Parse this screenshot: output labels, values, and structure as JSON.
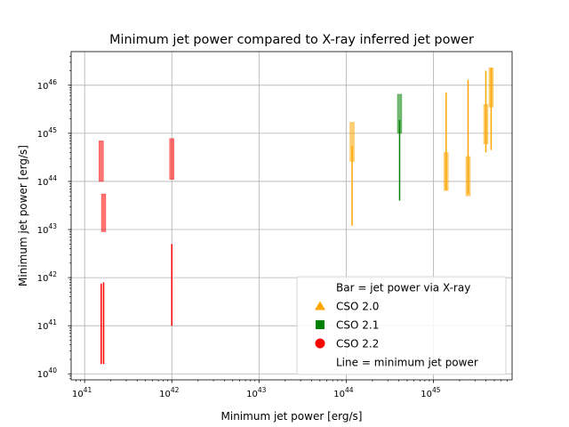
{
  "chart_data": {
    "type": "scatter",
    "title": "Minimum jet power compared to X-ray inferred jet power",
    "xlabel": "Minimum jet power [erg/s]",
    "ylabel": "Minimum jet power [erg/s]",
    "xscale": "log",
    "yscale": "log",
    "xlim": [
      7e+40,
      8e+45
    ],
    "ylim": [
      7.5e+39,
      5e+46
    ],
    "grid": true,
    "x_ticks": [
      {
        "value": 1e+41,
        "base": "10",
        "exp": "41"
      },
      {
        "value": 1e+42,
        "base": "10",
        "exp": "42"
      },
      {
        "value": 1e+43,
        "base": "10",
        "exp": "43"
      },
      {
        "value": 1e+44,
        "base": "10",
        "exp": "44"
      },
      {
        "value": 1e+45,
        "base": "10",
        "exp": "45"
      }
    ],
    "y_ticks": [
      {
        "value": 1e+40,
        "base": "10",
        "exp": "40"
      },
      {
        "value": 1e+41,
        "base": "10",
        "exp": "41"
      },
      {
        "value": 1e+42,
        "base": "10",
        "exp": "42"
      },
      {
        "value": 1e+43,
        "base": "10",
        "exp": "43"
      },
      {
        "value": 1e+44,
        "base": "10",
        "exp": "44"
      },
      {
        "value": 1e+45,
        "base": "10",
        "exp": "45"
      },
      {
        "value": 1e+46,
        "base": "10",
        "exp": "46"
      }
    ],
    "legend": {
      "placement": "lower right",
      "entries": [
        {
          "label": "Bar = jet power via X-ray",
          "marker": "none"
        },
        {
          "label": "CSO 2.0",
          "marker": "triangle",
          "color": "#ffa500"
        },
        {
          "label": "CSO 2.1",
          "marker": "square",
          "color": "#008000"
        },
        {
          "label": "CSO 2.2",
          "marker": "circle",
          "color": "#ff0000"
        },
        {
          "label": "Line = minimum jet power",
          "marker": "none"
        }
      ]
    },
    "series": [
      {
        "name": "CSO 2.0",
        "color": "#ffa500",
        "sources": [
          {
            "x": 1.17e+44,
            "line": [
              1.2e+43,
              5.5e+44
            ],
            "bar": [
              2.6e+44,
              1.7e+45
            ]
          },
          {
            "x": 1.4e+45,
            "line": [
              6.5e+43,
              7e+45
            ],
            "bar": [
              6.5e+43,
              4e+44
            ]
          },
          {
            "x": 2.5e+45,
            "line": [
              5.5e+43,
              1.3e+46
            ],
            "bar": [
              5e+43,
              3.3e+44
            ]
          },
          {
            "x": 4e+45,
            "line": [
              4e+44,
              2e+46
            ],
            "bar": [
              6e+44,
              4e+45
            ]
          },
          {
            "x": 4.6e+45,
            "line": [
              4.5e+44,
              2.3e+46
            ],
            "bar": [
              3.5e+45,
              2.3e+46
            ]
          }
        ]
      },
      {
        "name": "CSO 2.1",
        "color": "#008000",
        "sources": [
          {
            "x": 4.1e+44,
            "line": [
              4e+43,
              1.9e+45
            ],
            "bar": [
              1e+45,
              6.5e+45
            ]
          }
        ]
      },
      {
        "name": "CSO 2.2",
        "color": "#ff0000",
        "sources": [
          {
            "x": 1.55e+41,
            "line": [
              1.6e+40,
              7.5e+41
            ],
            "bar": [
              1e+44,
              7e+44
            ]
          },
          {
            "x": 1.65e+41,
            "line": [
              1.6e+40,
              8e+41
            ],
            "bar": [
              9e+42,
              5.5e+43
            ]
          },
          {
            "x": 1e+42,
            "line": [
              1e+41,
              5e+42
            ],
            "bar": [
              1.1e+44,
              7.8e+44
            ]
          }
        ]
      }
    ]
  }
}
